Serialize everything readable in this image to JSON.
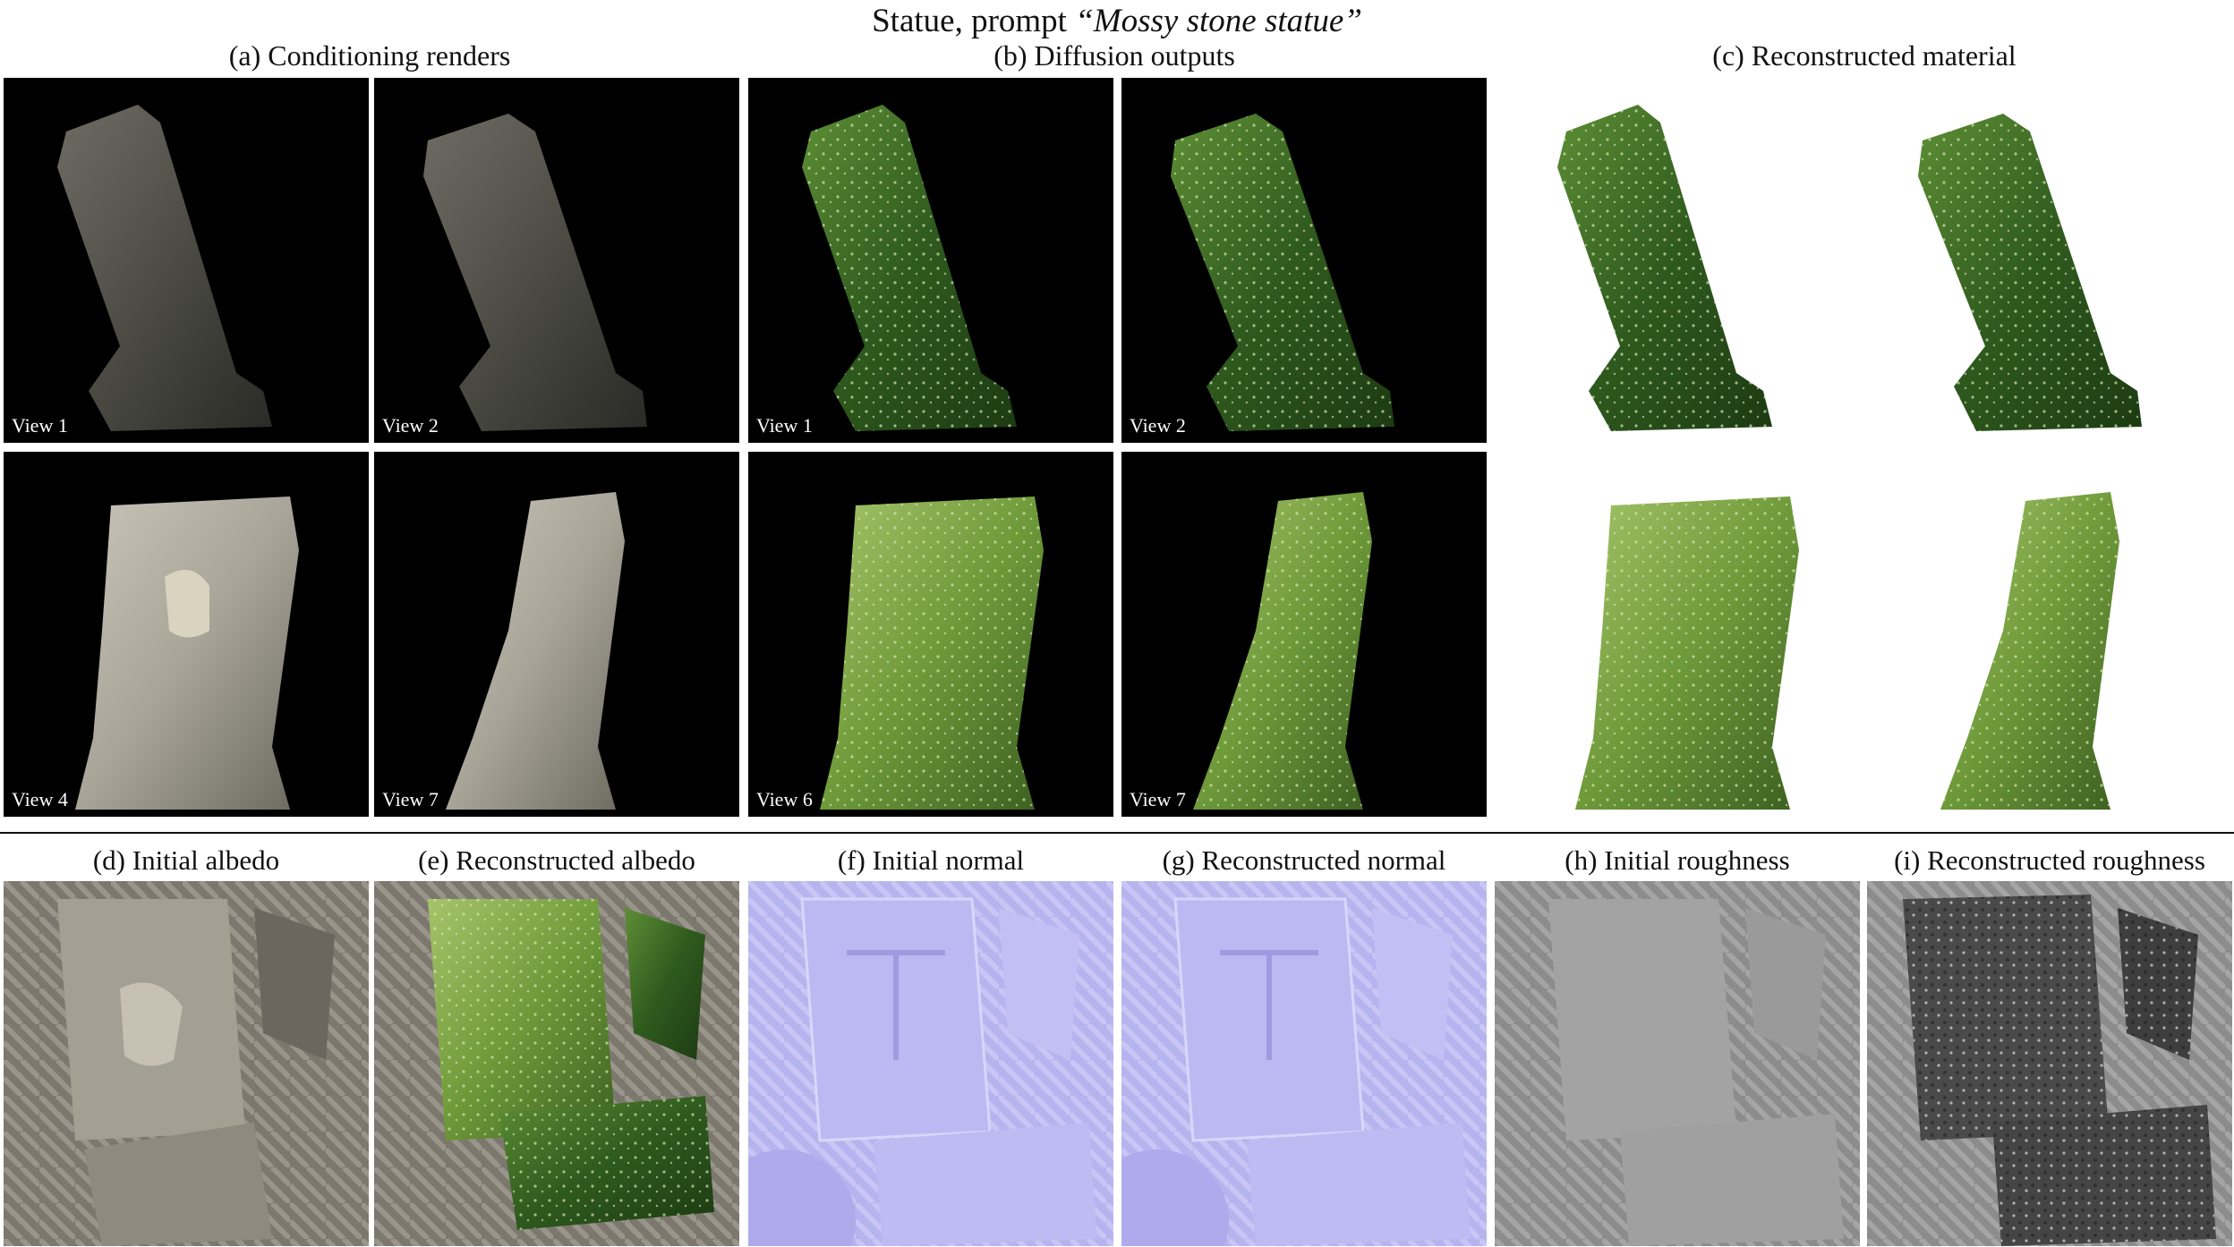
{
  "title": {
    "prefix": "Statue, prompt ",
    "prompt": "“Mossy stone statue”"
  },
  "sections": {
    "a": "(a) Conditioning renders",
    "b": "(b) Diffusion outputs",
    "c": "(c) Reconstructed material"
  },
  "views": {
    "a_top_left": "View 1",
    "a_top_right": "View 2",
    "a_bottom_left": "View 4",
    "a_bottom_right": "View 7",
    "b_top_left": "View 1",
    "b_top_right": "View 2",
    "b_bottom_left": "View 6",
    "b_bottom_right": "View 7"
  },
  "maps": {
    "d": "(d) Initial albedo",
    "e": "(e) Reconstructed albedo",
    "f": "(f) Initial normal",
    "g": "(g) Reconstructed normal",
    "h": "(h) Initial roughness",
    "i": "(i) Reconstructed roughness"
  },
  "colors": {
    "stone_dark": "#4c4c45",
    "stone_light": "#a8a498",
    "moss_dark": "#2f5a1e",
    "moss_light": "#6f9a3a",
    "normal_base": "#b6b4ee",
    "roughness_base": "#8f8f8f"
  }
}
